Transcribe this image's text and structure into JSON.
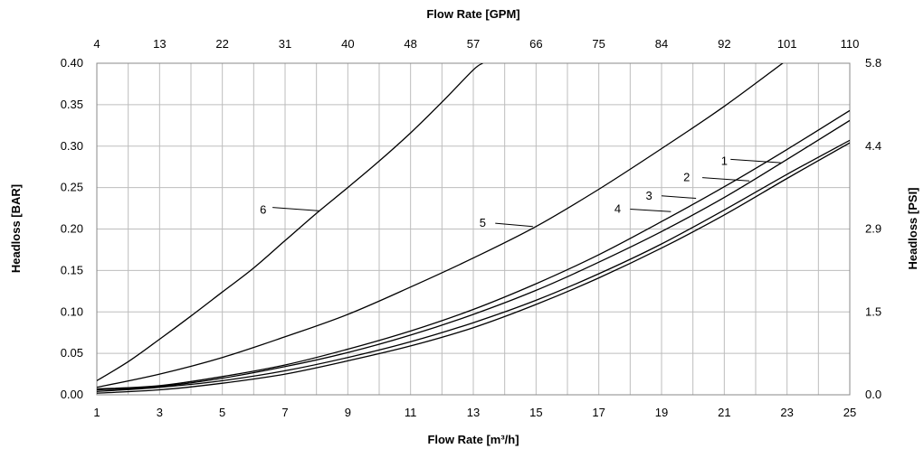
{
  "chart_data": {
    "type": "line",
    "title": "",
    "xlabel": "Flow Rate [m³/h]",
    "ylabel": "Headloss [BAR]",
    "x2label": "Flow Rate [GPM]",
    "y2label": "Headloss [PSI]",
    "xlim": [
      1,
      25
    ],
    "ylim": [
      0,
      0.4
    ],
    "grid": true,
    "x_minor_step": 1,
    "x_ticks": [
      "1",
      "3",
      "5",
      "7",
      "9",
      "11",
      "13",
      "15",
      "17",
      "19",
      "21",
      "23",
      "25"
    ],
    "y_ticks": [
      "0.00",
      "0.05",
      "0.10",
      "0.15",
      "0.20",
      "0.25",
      "0.30",
      "0.35",
      "0.40"
    ],
    "x2_ticks": [
      "4",
      "13",
      "22",
      "31",
      "40",
      "48",
      "57",
      "66",
      "75",
      "84",
      "92",
      "101",
      "110"
    ],
    "y2_ticks": [
      {
        "label": "0.0",
        "bar": 0.0
      },
      {
        "label": "1.5",
        "bar": 0.1
      },
      {
        "label": "2.9",
        "bar": 0.2
      },
      {
        "label": "4.4",
        "bar": 0.3
      },
      {
        "label": "5.8",
        "bar": 0.4
      }
    ],
    "series": [
      {
        "name": "1",
        "x": [
          1,
          3,
          5,
          7,
          9,
          11,
          13,
          15,
          17,
          19,
          21,
          23,
          25
        ],
        "y": [
          0.007,
          0.011,
          0.022,
          0.036,
          0.055,
          0.077,
          0.103,
          0.134,
          0.169,
          0.209,
          0.251,
          0.296,
          0.343
        ],
        "label_at": [
          21,
          0.283
        ],
        "line_end": [
          22.8,
          0.28
        ],
        "line_start": [
          21.2,
          0.284
        ]
      },
      {
        "name": "2",
        "x": [
          1,
          3,
          5,
          7,
          9,
          11,
          13,
          15,
          17,
          19,
          21,
          23,
          25
        ],
        "y": [
          0.006,
          0.01,
          0.02,
          0.034,
          0.051,
          0.072,
          0.097,
          0.126,
          0.16,
          0.197,
          0.238,
          0.284,
          0.331
        ],
        "label_at": [
          19.8,
          0.263
        ],
        "line_end": [
          21.8,
          0.258
        ],
        "line_start": [
          20.3,
          0.262
        ]
      },
      {
        "name": "3",
        "x": [
          1,
          3,
          5,
          7,
          9,
          11,
          13,
          15,
          17,
          19,
          21,
          23,
          25
        ],
        "y": [
          0.004,
          0.009,
          0.017,
          0.029,
          0.045,
          0.064,
          0.087,
          0.114,
          0.146,
          0.182,
          0.223,
          0.266,
          0.307
        ],
        "label_at": [
          18.6,
          0.241
        ],
        "line_end": [
          20.1,
          0.237
        ],
        "line_start": [
          19.0,
          0.24
        ]
      },
      {
        "name": "4",
        "x": [
          1,
          3,
          5,
          7,
          9,
          11,
          13,
          15,
          17,
          19,
          21,
          23,
          25
        ],
        "y": [
          0.002,
          0.006,
          0.014,
          0.025,
          0.041,
          0.059,
          0.081,
          0.109,
          0.141,
          0.177,
          0.217,
          0.261,
          0.304
        ],
        "label_at": [
          17.6,
          0.225
        ],
        "line_end": [
          19.3,
          0.221
        ],
        "line_start": [
          18.0,
          0.224
        ]
      },
      {
        "name": "5",
        "x": [
          1,
          3,
          5,
          7,
          9,
          11,
          13,
          15,
          17,
          19,
          21,
          23,
          25
        ],
        "y": [
          0.009,
          0.025,
          0.045,
          0.07,
          0.097,
          0.13,
          0.165,
          0.203,
          0.248,
          0.297,
          0.348,
          0.404,
          0.46
        ],
        "label_at": [
          13.3,
          0.208
        ],
        "line_end": [
          14.9,
          0.203
        ],
        "line_start": [
          13.7,
          0.207
        ]
      },
      {
        "name": "6",
        "x": [
          1,
          2,
          3,
          4,
          5,
          6,
          7,
          8,
          9,
          10,
          11,
          12,
          13,
          13.3
        ],
        "y": [
          0.017,
          0.04,
          0.067,
          0.095,
          0.124,
          0.153,
          0.186,
          0.219,
          0.25,
          0.282,
          0.316,
          0.353,
          0.392,
          0.4
        ],
        "label_at": [
          6.3,
          0.224
        ],
        "line_end": [
          8.1,
          0.222
        ],
        "line_start": [
          6.6,
          0.226
        ]
      }
    ]
  }
}
